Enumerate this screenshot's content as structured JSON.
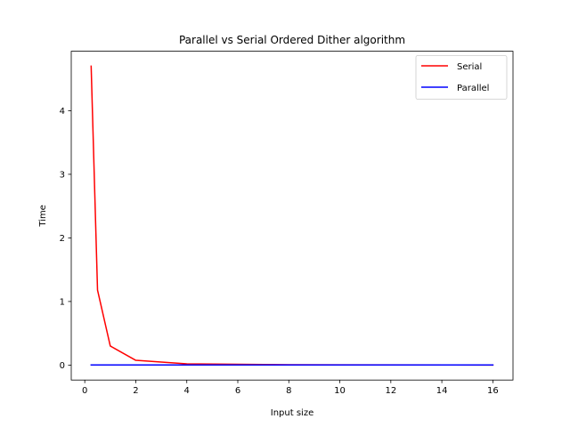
{
  "chart_data": {
    "type": "line",
    "title": "Parallel vs Serial Ordered Dither algorithm",
    "xlabel": "Input size",
    "ylabel": "Time",
    "xlim": [
      -0.53,
      16.79
    ],
    "ylim": [
      -0.235,
      4.935
    ],
    "xticks": [
      0,
      2,
      4,
      6,
      8,
      10,
      12,
      14,
      16
    ],
    "yticks": [
      0,
      1,
      2,
      3,
      4
    ],
    "grid": false,
    "legend_position": "top-right",
    "series": [
      {
        "name": "Serial",
        "color": "#ff0000",
        "x": [
          0.25,
          0.5,
          1,
          2,
          4,
          8,
          16
        ],
        "y": [
          4.7,
          1.18,
          0.3,
          0.075,
          0.02,
          0.005,
          0.001
        ]
      },
      {
        "name": "Parallel",
        "color": "#0000ff",
        "x": [
          0.25,
          0.5,
          1,
          2,
          4,
          8,
          16
        ],
        "y": [
          0.002,
          0.002,
          0.002,
          0.002,
          0.002,
          0.002,
          0.002
        ]
      }
    ]
  }
}
